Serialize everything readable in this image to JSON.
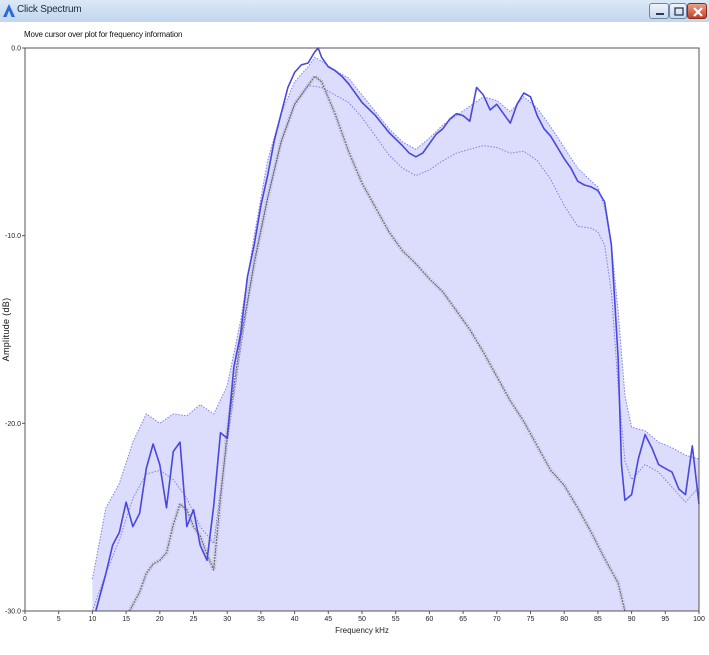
{
  "window": {
    "title": "Click Spectrum",
    "hint": "Move cursor over plot for frequency information"
  },
  "colors": {
    "fill": "#dcdcfc",
    "series_main": "#4848e0",
    "series_band": "#8080ee",
    "series_gray": "#666666",
    "title_bar": "#c8d9ef"
  },
  "chart_data": {
    "type": "line",
    "title": "",
    "xlabel": "Frequency kHz",
    "ylabel": "Amplitude (dB)",
    "xlim": [
      0,
      100
    ],
    "ylim": [
      -30,
      0
    ],
    "x_ticks": [
      0,
      5,
      10,
      15,
      20,
      25,
      30,
      35,
      40,
      45,
      50,
      55,
      60,
      65,
      70,
      75,
      80,
      85,
      90,
      95,
      100
    ],
    "y_ticks": [
      {
        "value": 0,
        "label": "0.0"
      },
      {
        "value": -10,
        "label": "-10.0"
      },
      {
        "value": -20,
        "label": "-20.0"
      },
      {
        "value": -30,
        "label": "-30.0"
      }
    ],
    "grid": false,
    "legend": "none",
    "series": [
      {
        "role": "main",
        "x": [
          10.5,
          12,
          13,
          14,
          15,
          16,
          17,
          18,
          19,
          20,
          21,
          22,
          23,
          24,
          25,
          26,
          27,
          28,
          29,
          30,
          31,
          32,
          33,
          34,
          35,
          36,
          37,
          38,
          39,
          40,
          41,
          42,
          43,
          43.5,
          44,
          45,
          46,
          47,
          48,
          50,
          52,
          54,
          56,
          57,
          58,
          59,
          60,
          61,
          62,
          63,
          64,
          65,
          66,
          67,
          68,
          69,
          70,
          71,
          72,
          73,
          74,
          75,
          76,
          77,
          78,
          79,
          80,
          81,
          82,
          83,
          84,
          85,
          86,
          87,
          88,
          88.5,
          89,
          90,
          91,
          92,
          93,
          94,
          95,
          96,
          97,
          98,
          99,
          100
        ],
        "y": [
          -30,
          -28,
          -26.5,
          -25.8,
          -24.2,
          -25.5,
          -24.8,
          -22.4,
          -21.1,
          -22.2,
          -24.5,
          -21.5,
          -21,
          -25.5,
          -24.6,
          -26.5,
          -27.3,
          -24.4,
          -20.5,
          -20.8,
          -17,
          -15.2,
          -12.2,
          -10.5,
          -8.4,
          -6.8,
          -4.9,
          -3.5,
          -2.1,
          -1.3,
          -0.9,
          -0.8,
          -0.2,
          0,
          -0.5,
          -1.0,
          -1.2,
          -1.5,
          -1.9,
          -2.9,
          -3.6,
          -4.5,
          -5.2,
          -5.6,
          -5.8,
          -5.6,
          -5.1,
          -4.6,
          -4.3,
          -3.8,
          -3.5,
          -3.6,
          -3.9,
          -2.1,
          -2.5,
          -3.3,
          -3.0,
          -3.5,
          -4.0,
          -3.0,
          -2.4,
          -2.6,
          -3.6,
          -4.3,
          -4.7,
          -5.3,
          -5.9,
          -6.4,
          -7.1,
          -7.3,
          -7.4,
          -7.6,
          -8.2,
          -10.5,
          -16.5,
          -22.2,
          -24.1,
          -23.8,
          -21.9,
          -20.6,
          -21.3,
          -22.2,
          -22.4,
          -22.6,
          -23.5,
          -23.8,
          -21.2,
          -24.3
        ]
      },
      {
        "role": "upper-band",
        "x": [
          10,
          12,
          14,
          16,
          18,
          20,
          22,
          24,
          26,
          28,
          30,
          32,
          34,
          36,
          38,
          40,
          42,
          43,
          44,
          46,
          48,
          50,
          52,
          54,
          56,
          58,
          60,
          62,
          64,
          66,
          68,
          70,
          72,
          74,
          76,
          78,
          80,
          82,
          84,
          85,
          86,
          87,
          88,
          89,
          90,
          92,
          94,
          96,
          98,
          100
        ],
        "y": [
          -28.3,
          -24.5,
          -23.2,
          -21,
          -19.5,
          -20,
          -19.5,
          -19.6,
          -19,
          -19.5,
          -18,
          -14.5,
          -10,
          -6,
          -3.5,
          -1.8,
          -1.0,
          -0.5,
          -0.7,
          -1.2,
          -1.6,
          -2.5,
          -3.4,
          -4.3,
          -5.0,
          -5.4,
          -4.8,
          -4.1,
          -3.6,
          -3.1,
          -2.6,
          -2.8,
          -3.4,
          -2.6,
          -3.2,
          -4.2,
          -5.3,
          -6.4,
          -7.1,
          -7.4,
          -8.5,
          -10.5,
          -14,
          -18.5,
          -20.2,
          -20.4,
          -21,
          -21.3,
          -21.7,
          -21.9
        ]
      },
      {
        "role": "lower-band",
        "x": [
          10,
          12,
          14,
          16,
          18,
          20,
          22,
          24,
          26,
          28,
          30,
          32,
          34,
          36,
          38,
          40,
          42,
          44,
          46,
          48,
          50,
          52,
          54,
          56,
          58,
          60,
          62,
          64,
          66,
          68,
          70,
          72,
          74,
          76,
          78,
          80,
          82,
          84,
          85,
          86,
          87,
          88,
          89,
          90,
          92,
          94,
          96,
          98,
          100
        ],
        "y": [
          -30,
          -28,
          -26.2,
          -24,
          -22.7,
          -22.5,
          -23,
          -24,
          -25.5,
          -26.4,
          -21,
          -16,
          -11.3,
          -8,
          -5,
          -3,
          -2,
          -2.1,
          -2.5,
          -2.9,
          -3.7,
          -4.7,
          -5.7,
          -6.4,
          -6.8,
          -6.5,
          -6,
          -5.6,
          -5.4,
          -5.2,
          -5.3,
          -5.6,
          -5.5,
          -6,
          -7,
          -8.4,
          -9.5,
          -9.6,
          -9.8,
          -10.5,
          -13,
          -18,
          -22,
          -23,
          -22.2,
          -22.6,
          -23.4,
          -24.2,
          -23.4
        ]
      },
      {
        "role": "gray",
        "x": [
          15.5,
          17,
          18,
          19,
          20,
          21,
          22,
          23,
          24,
          25,
          26,
          27,
          28,
          29,
          30,
          32,
          34,
          36,
          38,
          40,
          42,
          43,
          44,
          46,
          48,
          50,
          52,
          54,
          56,
          58,
          60,
          62,
          64,
          66,
          68,
          70,
          72,
          74,
          76,
          78,
          80,
          82,
          84,
          86,
          88,
          89
        ],
        "y": [
          -30,
          -29,
          -28,
          -27.5,
          -27.3,
          -26.9,
          -25.4,
          -24.3,
          -24.6,
          -25.5,
          -26,
          -27,
          -27.8,
          -24,
          -20.5,
          -15.5,
          -11.5,
          -8,
          -5,
          -3,
          -2,
          -1.5,
          -1.8,
          -3.5,
          -5.5,
          -7.2,
          -8.5,
          -9.8,
          -10.8,
          -11.5,
          -12.3,
          -13,
          -14,
          -15,
          -16.2,
          -17.5,
          -18.8,
          -19.9,
          -21.2,
          -22.5,
          -23.3,
          -24.5,
          -25.8,
          -27.2,
          -28.5,
          -30
        ]
      }
    ]
  }
}
